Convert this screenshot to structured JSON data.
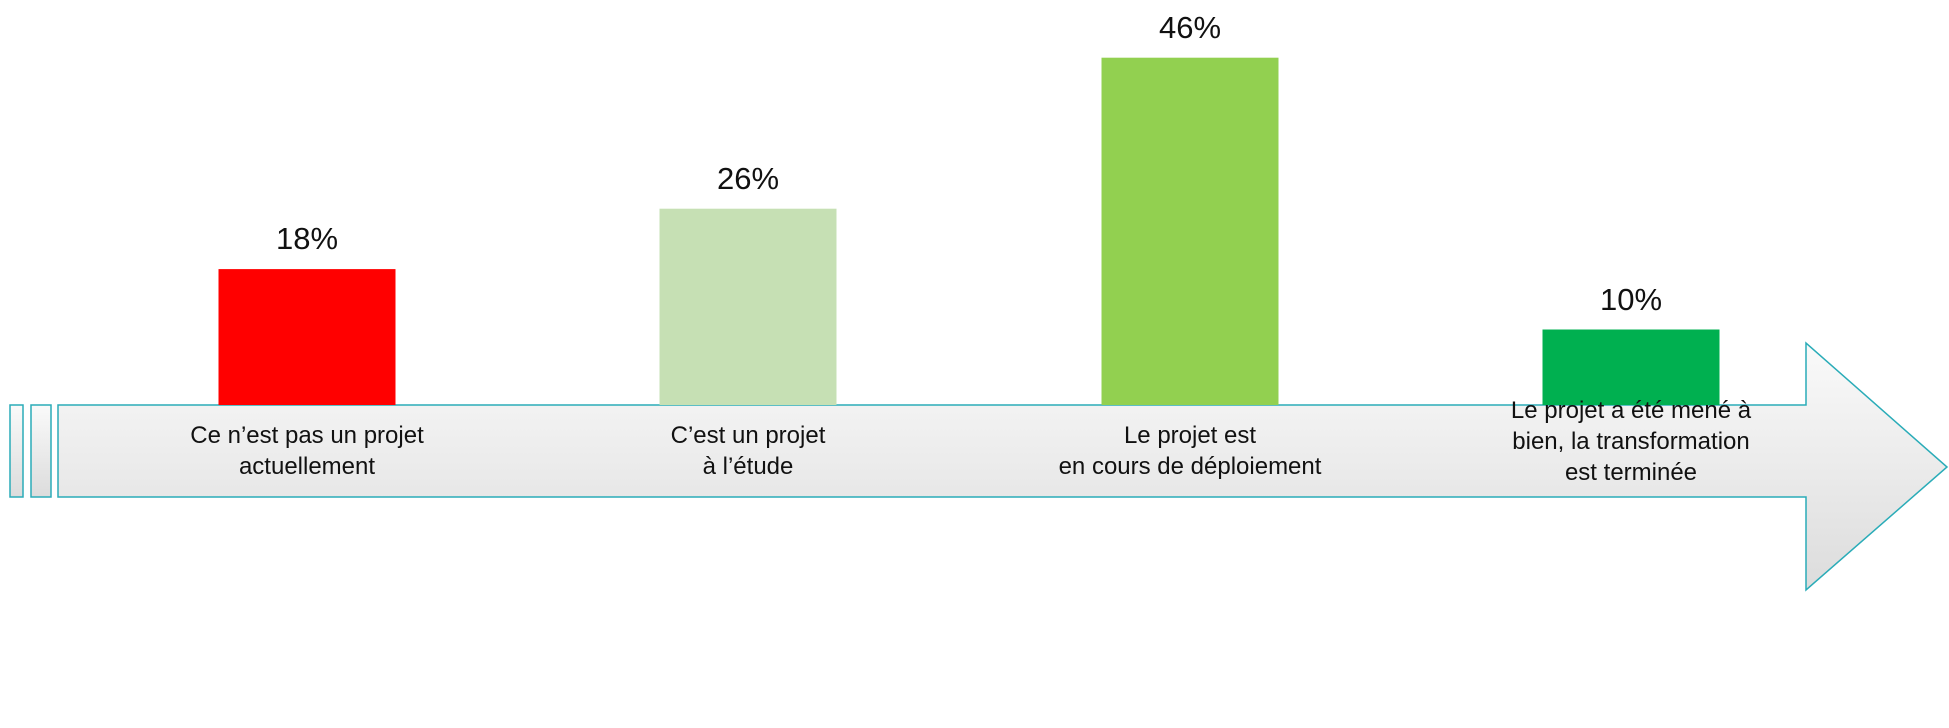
{
  "chart_data": {
    "type": "bar",
    "categories": [
      "Ce n’est pas un projet\nactuellement",
      "C’est un projet\nà l’étude",
      "Le projet est\nen cours de déploiement",
      "Le projet a été mené à\nbien, la transformation\nest terminée"
    ],
    "values": [
      18,
      26,
      46,
      10
    ],
    "value_labels": [
      "18%",
      "26%",
      "46%",
      "10%"
    ],
    "colors": [
      "#ff0000",
      "#c6e0b4",
      "#92d050",
      "#00b050"
    ]
  }
}
